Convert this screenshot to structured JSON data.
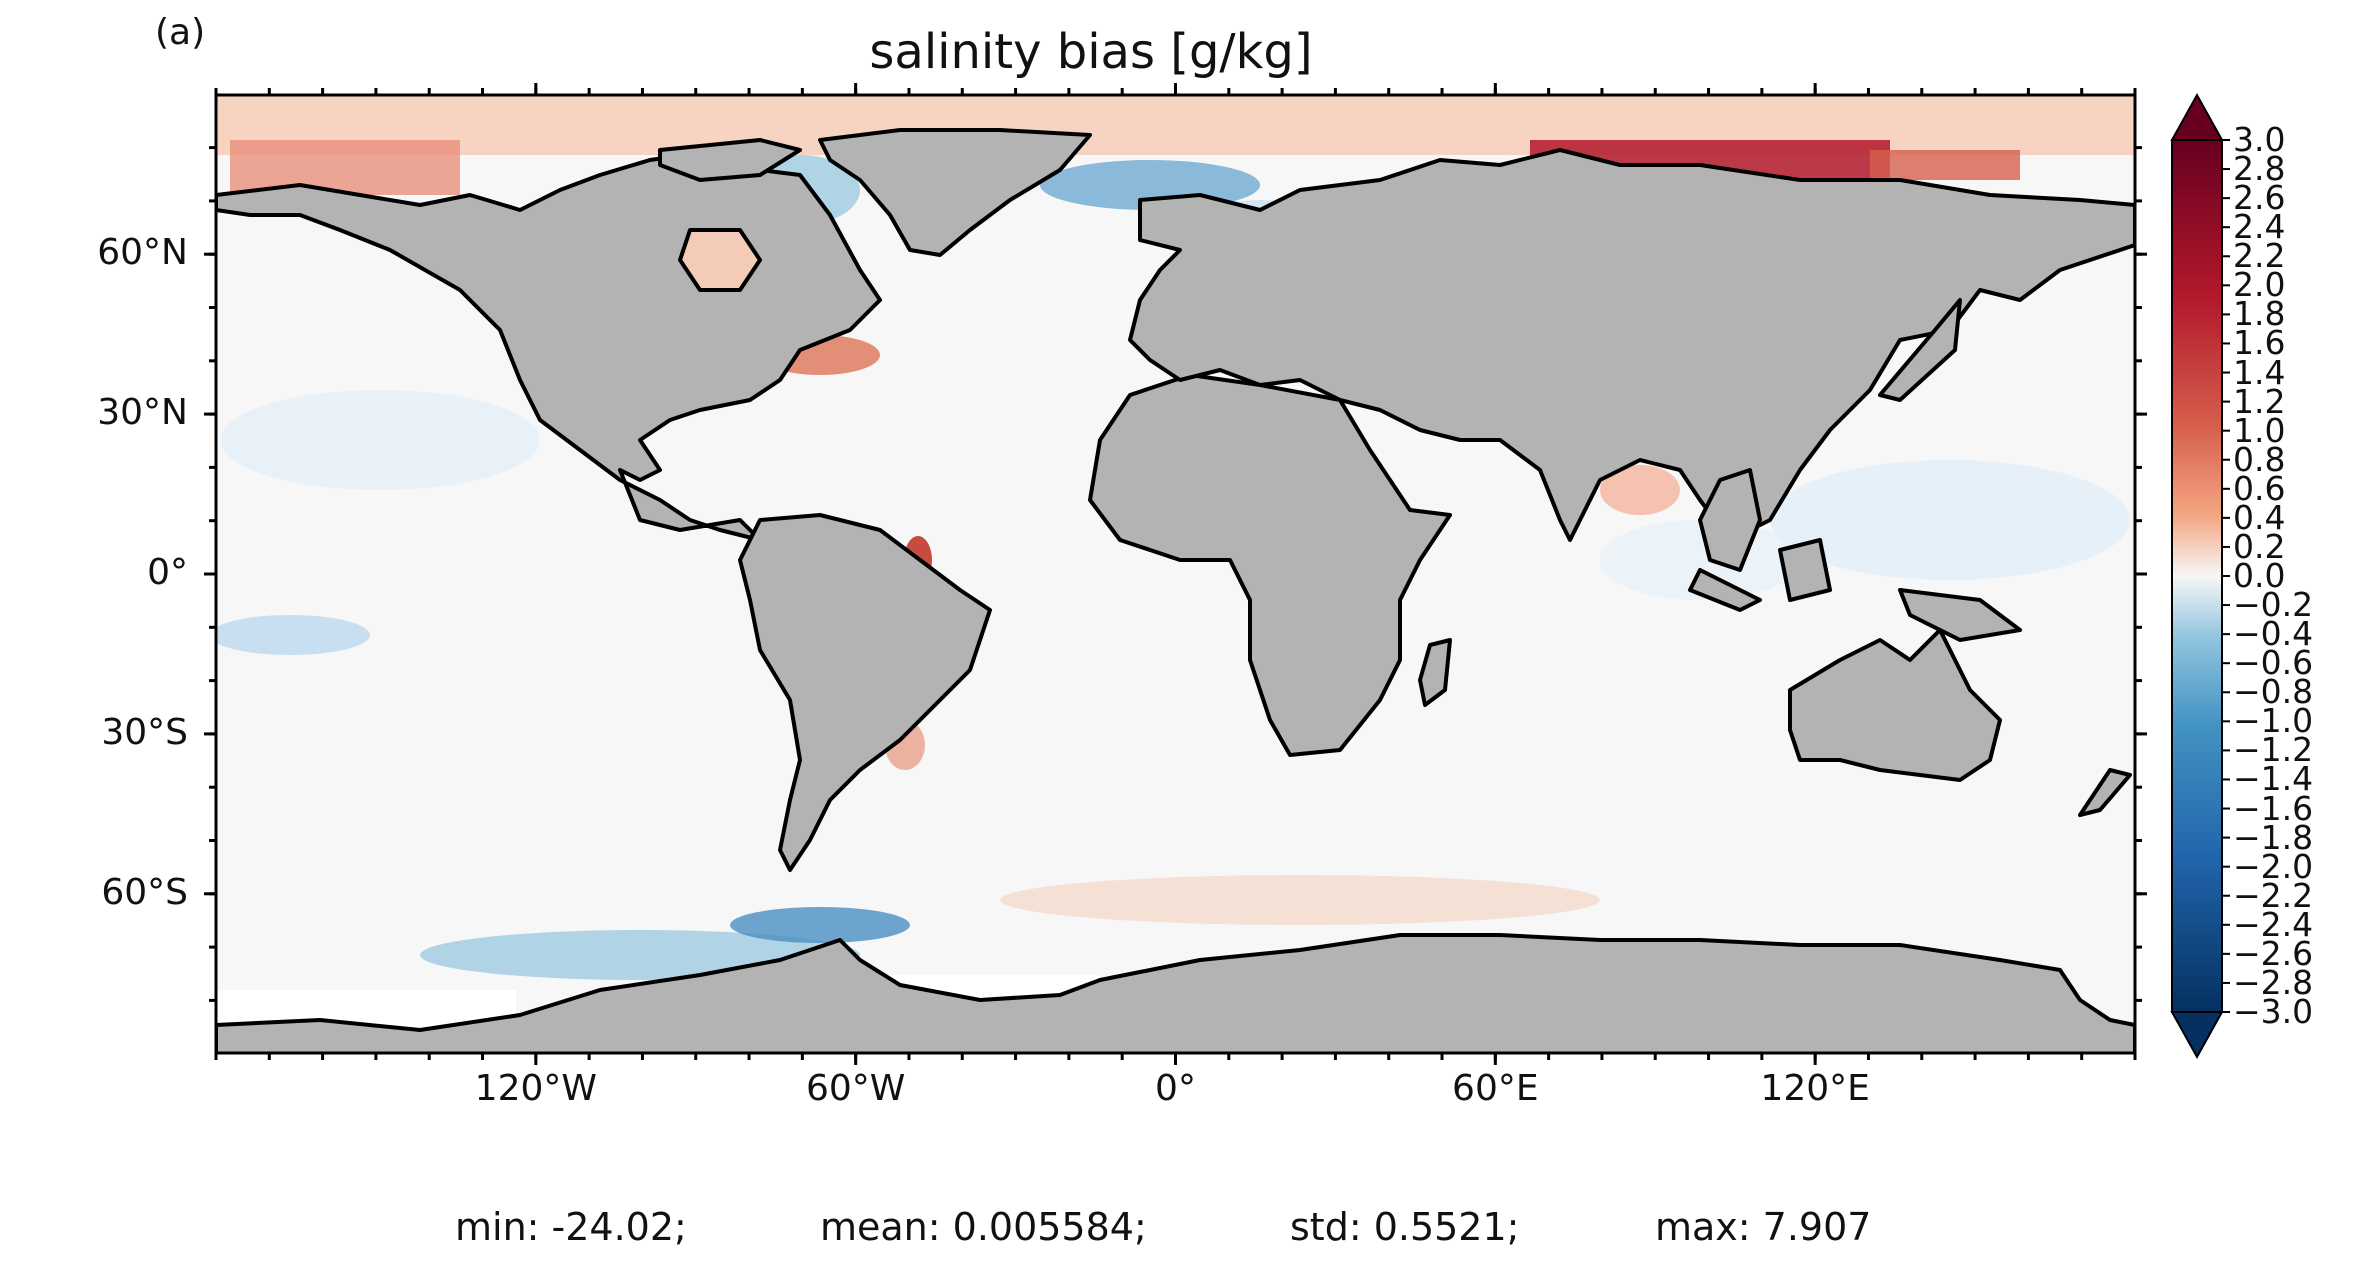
{
  "panel_label": "(a)",
  "title": "salinity bias [g/kg]",
  "lat_ticks": [
    {
      "label": "60°N",
      "value": 60
    },
    {
      "label": "30°N",
      "value": 30
    },
    {
      "label": "0°",
      "value": 0
    },
    {
      "label": "30°S",
      "value": -30
    },
    {
      "label": "60°S",
      "value": -60
    }
  ],
  "lon_ticks": [
    {
      "label": "120°W",
      "value": -120
    },
    {
      "label": "60°W",
      "value": -60
    },
    {
      "label": "0°",
      "value": 0
    },
    {
      "label": "60°E",
      "value": 60
    },
    {
      "label": "120°E",
      "value": 120
    }
  ],
  "colorbar": {
    "min": -3.0,
    "max": 3.0,
    "step": 0.2,
    "labels": [
      "−3.0",
      "−2.8",
      "−2.6",
      "−2.4",
      "−2.2",
      "−2.0",
      "−1.8",
      "−1.6",
      "−1.4",
      "−1.2",
      "−1.0",
      "−0.8",
      "−0.6",
      "−0.4",
      "−0.2",
      "0.0",
      "0.2",
      "0.4",
      "0.6",
      "0.8",
      "1.0",
      "1.2",
      "1.4",
      "1.6",
      "1.8",
      "2.0",
      "2.2",
      "2.4",
      "2.6",
      "2.8",
      "3.0"
    ],
    "colors": {
      "low": "#053061",
      "mid_low": "#4393c3",
      "mid": "#f7f7f7",
      "mid_high": "#d6604d",
      "high": "#67001f"
    }
  },
  "colors": {
    "land": "#b3b3b3",
    "coast": "#000000",
    "ocean_base": "#f7f7f7"
  },
  "stats": {
    "min": "min: -24.02;",
    "mean": "mean: 0.005584;",
    "std": "std: 0.5521;",
    "max": "max: 7.907"
  }
}
